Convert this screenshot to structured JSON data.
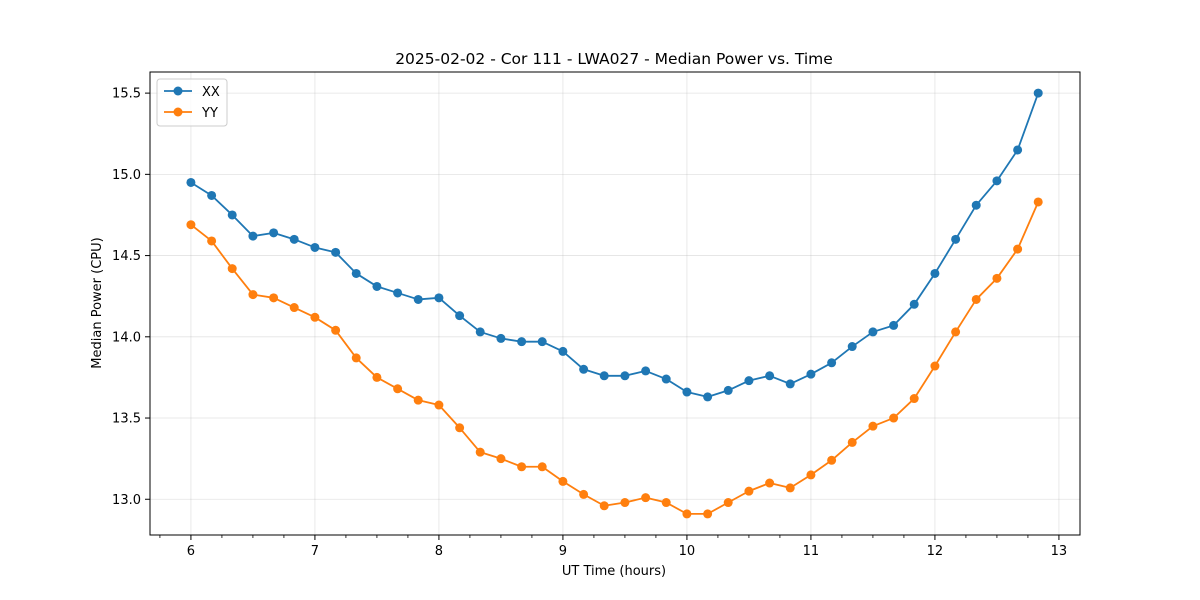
{
  "chart_data": {
    "type": "line",
    "title": "2025-02-02 - Cor 111 - LWA027 - Median Power vs. Time",
    "xlabel": "UT Time (hours)",
    "ylabel": "Median Power (CPU)",
    "xlim": [
      5.67,
      13.17
    ],
    "ylim": [
      12.78,
      15.63
    ],
    "xticks": [
      6,
      7,
      8,
      9,
      10,
      11,
      12,
      13
    ],
    "xtick_labels": [
      "6",
      "7",
      "8",
      "9",
      "10",
      "11",
      "12",
      "13"
    ],
    "yticks": [
      13.0,
      13.5,
      14.0,
      14.5,
      15.0,
      15.5
    ],
    "ytick_labels": [
      "13.0",
      "13.5",
      "14.0",
      "14.5",
      "15.0",
      "15.5"
    ],
    "grid": true,
    "legend_position": "top-left",
    "x": [
      6.0,
      6.167,
      6.333,
      6.5,
      6.667,
      6.833,
      7.0,
      7.167,
      7.333,
      7.5,
      7.667,
      7.833,
      8.0,
      8.167,
      8.333,
      8.5,
      8.667,
      8.833,
      9.0,
      9.167,
      9.333,
      9.5,
      9.667,
      9.833,
      10.0,
      10.167,
      10.333,
      10.5,
      10.667,
      10.833,
      11.0,
      11.167,
      11.333,
      11.5,
      11.667,
      11.833,
      12.0,
      12.167,
      12.333,
      12.5,
      12.667,
      12.833
    ],
    "series": [
      {
        "name": "XX",
        "color": "#1f77b4",
        "values": [
          14.95,
          14.87,
          14.75,
          14.62,
          14.64,
          14.6,
          14.55,
          14.52,
          14.39,
          14.31,
          14.27,
          14.23,
          14.24,
          14.13,
          14.03,
          13.99,
          13.97,
          13.97,
          13.91,
          13.8,
          13.76,
          13.76,
          13.79,
          13.74,
          13.66,
          13.63,
          13.67,
          13.73,
          13.76,
          13.71,
          13.77,
          13.84,
          13.94,
          14.03,
          14.07,
          14.2,
          14.39,
          14.6,
          14.81,
          14.96,
          15.15,
          15.5
        ]
      },
      {
        "name": "YY",
        "color": "#ff7f0e",
        "values": [
          14.69,
          14.59,
          14.42,
          14.26,
          14.24,
          14.18,
          14.12,
          14.04,
          13.87,
          13.75,
          13.68,
          13.61,
          13.58,
          13.44,
          13.29,
          13.25,
          13.2,
          13.2,
          13.11,
          13.03,
          12.96,
          12.98,
          13.01,
          12.98,
          12.91,
          12.91,
          12.98,
          13.05,
          13.1,
          13.07,
          13.15,
          13.24,
          13.35,
          13.45,
          13.5,
          13.62,
          13.82,
          14.03,
          14.23,
          14.36,
          14.54,
          14.83
        ]
      }
    ]
  }
}
